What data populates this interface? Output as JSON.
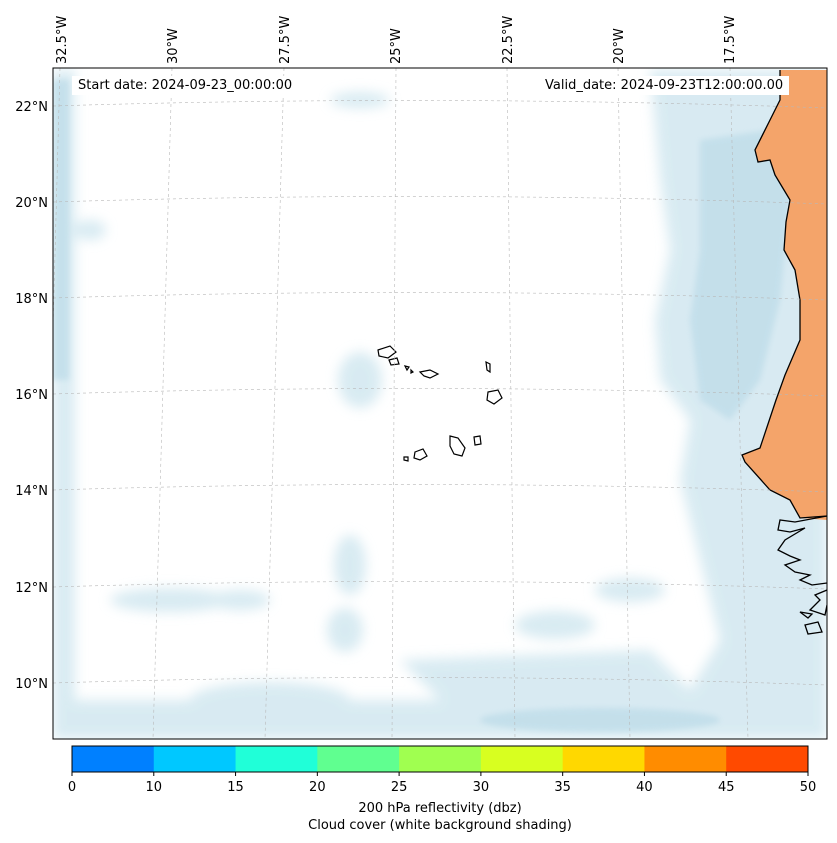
{
  "info": {
    "start_date": "Start date: 2024-09-23_00:00:00",
    "valid_date": "Valid_date: 2024-09-23T12:00:00.00"
  },
  "axes": {
    "lon_labels": [
      "32.5°W",
      "30°W",
      "27.5°W",
      "25°W",
      "22.5°W",
      "20°W",
      "17.5°W"
    ],
    "lat_labels": [
      "22°N",
      "20°N",
      "18°N",
      "16°N",
      "14°N",
      "12°N",
      "10°N"
    ],
    "gridlines": true,
    "gridline_style": "dashed"
  },
  "colorbar": {
    "label": "200 hPa reflectivity (dbz)",
    "sublabel": "Cloud cover (white background shading)",
    "ticks": [
      "0",
      "10",
      "15",
      "20",
      "25",
      "30",
      "35",
      "40",
      "45",
      "50"
    ],
    "colors": [
      "#0080ff",
      "#00c8ff",
      "#20ffd8",
      "#60ff90",
      "#a0ff50",
      "#d8ff20",
      "#ffd800",
      "#ff8c00",
      "#ff4a00"
    ]
  },
  "map": {
    "region": "Cape Verde and West African coast",
    "cloud_color": "#cfe6ef",
    "land_color": "#f4a46a",
    "coast_color": "#000000"
  }
}
